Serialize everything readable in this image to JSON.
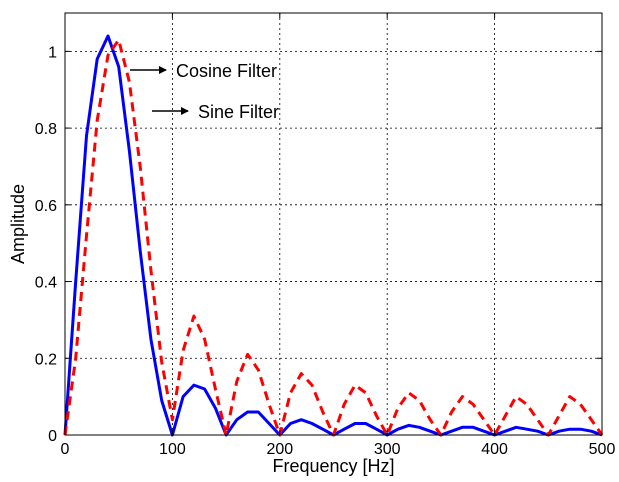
{
  "chart_data": {
    "type": "line",
    "xlabel": "Frequency [Hz]",
    "ylabel": "Amplitude",
    "xlim": [
      0,
      500
    ],
    "ylim": [
      0,
      1.1
    ],
    "xticks": [
      0,
      100,
      200,
      300,
      400,
      500
    ],
    "yticks": [
      0,
      0.2,
      0.4,
      0.6,
      0.8,
      1
    ],
    "xtick_labels": [
      "0",
      "100",
      "200",
      "300",
      "400",
      "500"
    ],
    "ytick_labels": [
      "0",
      "0.2",
      "0.4",
      "0.6",
      "0.8",
      "1"
    ],
    "grid": true,
    "series": [
      {
        "name": "Cosine Filter",
        "color": "#0000ff",
        "style": "solid",
        "x": [
          0,
          10,
          20,
          30,
          40,
          50,
          60,
          70,
          80,
          90,
          100,
          110,
          120,
          130,
          140,
          150,
          160,
          170,
          180,
          190,
          200,
          210,
          220,
          230,
          240,
          250,
          260,
          270,
          280,
          290,
          300,
          310,
          320,
          330,
          340,
          350,
          360,
          370,
          380,
          390,
          400,
          410,
          420,
          430,
          440,
          450,
          460,
          470,
          480,
          490,
          500
        ],
        "values": [
          0,
          0.4,
          0.78,
          0.98,
          1.04,
          0.96,
          0.74,
          0.48,
          0.25,
          0.09,
          0,
          0.1,
          0.13,
          0.12,
          0.07,
          0,
          0.04,
          0.06,
          0.06,
          0.03,
          0,
          0.03,
          0.04,
          0.03,
          0.015,
          0,
          0.015,
          0.03,
          0.03,
          0.015,
          0,
          0.015,
          0.025,
          0.02,
          0.01,
          0,
          0.01,
          0.02,
          0.02,
          0.01,
          0,
          0.01,
          0.02,
          0.015,
          0.01,
          0,
          0.01,
          0.015,
          0.015,
          0.01,
          0
        ]
      },
      {
        "name": "Sine Filter",
        "color": "#ff0000",
        "style": "dashed",
        "x": [
          0,
          10,
          20,
          30,
          40,
          50,
          60,
          70,
          80,
          90,
          100,
          110,
          120,
          130,
          140,
          150,
          160,
          170,
          180,
          190,
          200,
          210,
          220,
          230,
          240,
          250,
          260,
          270,
          280,
          290,
          300,
          310,
          320,
          330,
          340,
          350,
          360,
          370,
          380,
          390,
          400,
          410,
          420,
          430,
          440,
          450,
          460,
          470,
          480,
          490,
          500
        ],
        "values": [
          0,
          0.2,
          0.52,
          0.82,
          0.99,
          1.03,
          0.92,
          0.7,
          0.43,
          0.19,
          0.04,
          0.22,
          0.31,
          0.25,
          0.12,
          0,
          0.14,
          0.21,
          0.17,
          0.08,
          0,
          0.11,
          0.16,
          0.13,
          0.06,
          0,
          0.08,
          0.13,
          0.11,
          0.05,
          0,
          0.07,
          0.11,
          0.09,
          0.04,
          0,
          0.06,
          0.1,
          0.08,
          0.04,
          0,
          0.05,
          0.1,
          0.08,
          0.04,
          0,
          0.05,
          0.1,
          0.08,
          0.04,
          0
        ]
      }
    ],
    "annotations": [
      {
        "text": "Cosine Filter",
        "target_series": "Cosine Filter"
      },
      {
        "text": "Sine Filter",
        "target_series": "Sine Filter"
      }
    ]
  }
}
